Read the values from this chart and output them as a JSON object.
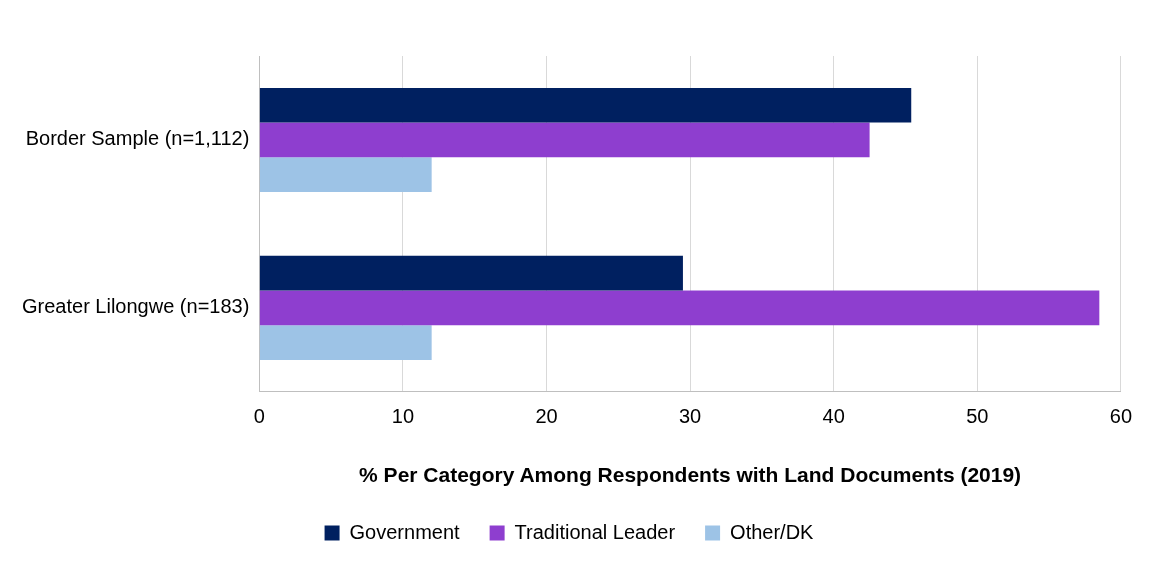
{
  "chart_data": {
    "type": "bar",
    "orientation": "horizontal",
    "xlabel": "% Per Category Among Respondents with Land Documents (2019)",
    "categories": [
      "Border Sample (n=1,112)",
      "Greater Lilongwe (n=183)"
    ],
    "series": [
      {
        "name": "Government",
        "color": "#002060",
        "values": [
          45.4,
          29.5
        ]
      },
      {
        "name": "Traditional Leader",
        "color": "#8e3ecf",
        "values": [
          42.5,
          58.5
        ]
      },
      {
        "name": "Other/DK",
        "color": "#9dc3e6",
        "values": [
          12.0,
          12.0
        ]
      }
    ],
    "xlim": [
      0,
      60
    ],
    "xticks": [
      0,
      10,
      20,
      30,
      40,
      50,
      60
    ],
    "grid": "x",
    "legend": "bottom"
  }
}
